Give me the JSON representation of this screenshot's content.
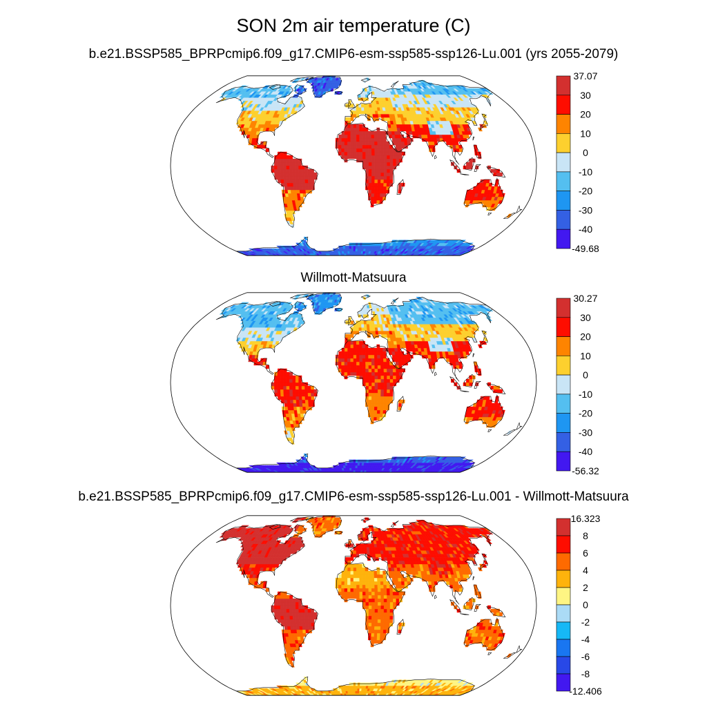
{
  "figure": {
    "title": "SON 2m air temperature (C)"
  },
  "colors": {
    "ocean": "#ffffff",
    "coast": "#000000"
  },
  "panels": [
    {
      "id": "p1",
      "title": "b.e21.BSSP585_BPRPcmip6.f09_g17.CMIP6-esm-ssp585-ssp126-Lu.001 (yrs 2055-2079)",
      "colorbar": {
        "labels": [
          "37.07",
          "30",
          "20",
          "10",
          "0",
          "-10",
          "-20",
          "-30",
          "-40",
          "-49.68"
        ],
        "colors": [
          "#d3302f",
          "#fe0d00",
          "#fe8400",
          "#fdd02e",
          "#c9e5f6",
          "#54bff0",
          "#1e96f2",
          "#3460e4",
          "#4218f0"
        ]
      },
      "field": {
        "arcticNA": 3,
        "northNA": 4,
        "centralNA": 5,
        "southNA": 6,
        "centralAm": 7,
        "amazon": 8,
        "southSA": 6,
        "patagonia": 5,
        "greenland": 1,
        "iceland": 2,
        "scandinavia": 4,
        "northEurope": 5,
        "southEurope": 6,
        "siberia": 3,
        "northAsia": 4,
        "centralAsia": 5,
        "tibet": 4,
        "southAsia": 7,
        "seAsia": 7,
        "sahara": 8,
        "sahel": 8,
        "centralAfrica": 8,
        "southAfrica": 7,
        "arabia": 8,
        "indonesia": 8,
        "australia": 7,
        "southAustralia": 6,
        "newZealand": 5,
        "antarctica": 1,
        "antarcticCoast": 2
      }
    },
    {
      "id": "p2",
      "title": "Willmott-Matsuura",
      "colorbar": {
        "labels": [
          "30.27",
          "30",
          "20",
          "10",
          "0",
          "-10",
          "-20",
          "-30",
          "-40",
          "-56.32"
        ],
        "colors": [
          "#d3302f",
          "#fe0d00",
          "#fe8400",
          "#fdd02e",
          "#c9e5f6",
          "#54bff0",
          "#1e96f2",
          "#3460e4",
          "#4218f0"
        ]
      },
      "field": {
        "arcticNA": 3,
        "northNA": 3,
        "centralNA": 4,
        "southNA": 5,
        "centralAm": 7,
        "amazon": 7,
        "southSA": 6,
        "patagonia": 5,
        "greenland": 2,
        "iceland": 3,
        "scandinavia": 4,
        "northEurope": 5,
        "southEurope": 6,
        "siberia": 3,
        "northAsia": 3,
        "centralAsia": 5,
        "tibet": 4,
        "southAsia": 7,
        "seAsia": 7,
        "sahara": 7,
        "sahel": 7,
        "centralAfrica": 7,
        "southAfrica": 6,
        "arabia": 7,
        "indonesia": 7,
        "australia": 7,
        "southAustralia": 6,
        "newZealand": 5,
        "antarctica": 0,
        "antarcticCoast": 1
      }
    },
    {
      "id": "p3",
      "title": "b.e21.BSSP585_BPRPcmip6.f09_g17.CMIP6-esm-ssp585-ssp126-Lu.001 - Willmott-Matsuura",
      "colorbar": {
        "labels": [
          "16.323",
          "8",
          "6",
          "4",
          "2",
          "0",
          "-2",
          "-4",
          "-6",
          "-8",
          "-12.406"
        ],
        "colors": [
          "#d3302f",
          "#fe0d00",
          "#fe6a00",
          "#feb30c",
          "#fef583",
          "#abdbf6",
          "#16b8f6",
          "#1976f1",
          "#2848e7",
          "#4218f0"
        ]
      },
      "field": {
        "arcticNA": 9,
        "northNA": 9,
        "centralNA": 9,
        "southNA": 8,
        "centralAm": 7,
        "amazon": 9,
        "southSA": 7,
        "patagonia": 7,
        "greenland": 7,
        "iceland": 7,
        "scandinavia": 8,
        "northEurope": 8,
        "southEurope": 8,
        "siberia": 8,
        "northAsia": 8,
        "centralAsia": 8,
        "tibet": 8,
        "southAsia": 7,
        "seAsia": 7,
        "sahara": 6,
        "sahel": 7,
        "centralAfrica": 7,
        "southAfrica": 7,
        "arabia": 7,
        "indonesia": 7,
        "australia": 7,
        "southAustralia": 7,
        "newZealand": 7,
        "antarctica": 6,
        "antarcticCoast": 5
      }
    }
  ]
}
